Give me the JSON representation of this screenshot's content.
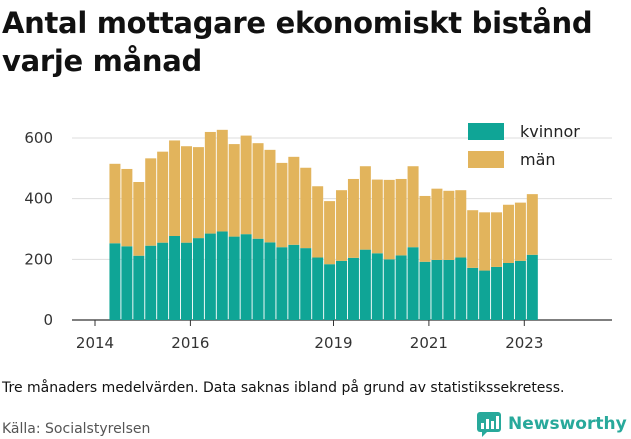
{
  "title": "Antal mottagare ekonomiskt bistånd varje månad",
  "note": "Tre månaders medelvärden. Data saknas ibland på grund av statistikssekretess.",
  "source": "Källa: Socialstyrelsen",
  "brand": {
    "name": "Newsworthy",
    "color": "#28a99b"
  },
  "colors": {
    "kvinnor": "#0fa596",
    "man": "#e2b45c",
    "grid": "#dddddd",
    "axis": "#333333"
  },
  "chart_data": {
    "type": "bar",
    "stacked": true,
    "y_ticks": [
      0,
      200,
      400,
      600
    ],
    "ylim": [
      0,
      650
    ],
    "x_ticks": [
      "2014",
      "2016",
      "2019",
      "2021",
      "2023"
    ],
    "legend_position": "top-right",
    "grid": true,
    "categories": [
      "2014-03",
      "2014-06",
      "2014-09",
      "2014-12",
      "2015-03",
      "2015-06",
      "2015-09",
      "2015-12",
      "2016-03",
      "2016-06",
      "2016-09",
      "2016-12",
      "2017-03",
      "2017-06",
      "2017-09",
      "2017-12",
      "2018-03",
      "2018-06",
      "2018-09",
      "2018-12",
      "2019-03",
      "2019-06",
      "2019-09",
      "2019-12",
      "2020-03",
      "2020-06",
      "2020-09",
      "2020-12",
      "2021-03",
      "2021-06",
      "2021-09",
      "2021-12",
      "2022-03",
      "2022-06",
      "2022-09",
      "2022-12"
    ],
    "series": [
      {
        "name": "kvinnor",
        "values": [
          253,
          243,
          212,
          245,
          255,
          277,
          255,
          270,
          285,
          292,
          275,
          283,
          268,
          256,
          240,
          248,
          237,
          206,
          184,
          195,
          205,
          232,
          220,
          200,
          213,
          240,
          192,
          198,
          198,
          206,
          172,
          163,
          175,
          188,
          195,
          215
        ]
      },
      {
        "name": "män",
        "values": [
          262,
          255,
          243,
          288,
          300,
          315,
          318,
          300,
          335,
          335,
          305,
          325,
          315,
          305,
          278,
          290,
          265,
          235,
          208,
          233,
          260,
          275,
          243,
          262,
          252,
          267,
          217,
          235,
          228,
          222,
          190,
          192,
          180,
          192,
          192,
          200
        ]
      }
    ]
  }
}
